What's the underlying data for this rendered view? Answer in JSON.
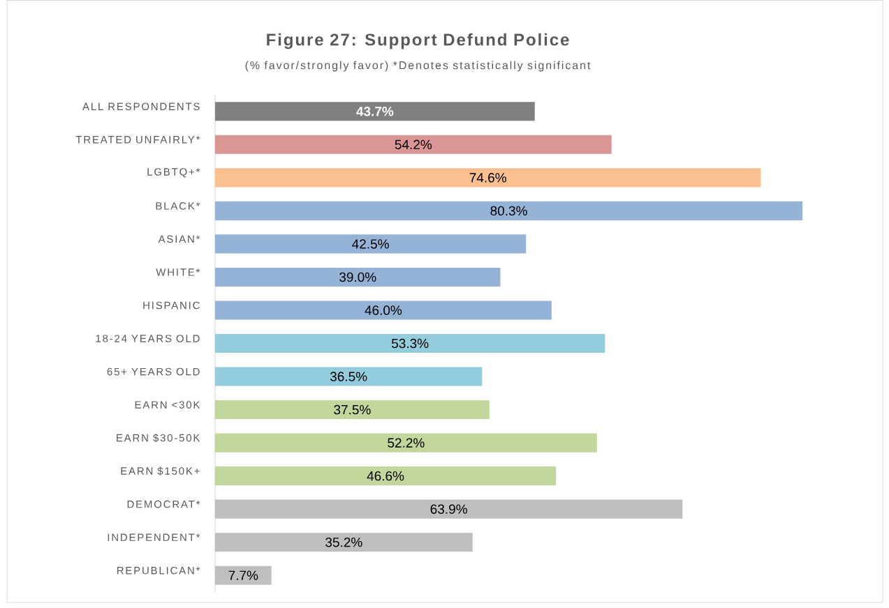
{
  "chart_data": {
    "type": "bar",
    "orientation": "horizontal",
    "title": "Figure 27: Support Defund Police",
    "subtitle": "(% favor/strongly favor) *Denotes statistically significant",
    "categories": [
      "ALL RESPONDENTS",
      "TREATED UNFAIRLY*",
      "LGBTQ+*",
      "BLACK*",
      "ASIAN*",
      "WHITE*",
      "HISPANIC",
      "18-24 YEARS OLD",
      "65+ YEARS OLD",
      "EARN <30K",
      "EARN $30-50K",
      "EARN $150K+",
      "DEMOCRAT*",
      "INDEPENDENT*",
      "REPUBLICAN*"
    ],
    "values": [
      43.7,
      54.2,
      74.6,
      80.3,
      42.5,
      39.0,
      46.0,
      53.3,
      36.5,
      37.5,
      52.2,
      46.6,
      63.9,
      35.2,
      7.7
    ],
    "value_labels": [
      "43.7%",
      "54.2%",
      "74.6%",
      "80.3%",
      "42.5%",
      "39.0%",
      "46.0%",
      "53.3%",
      "36.5%",
      "37.5%",
      "52.2%",
      "46.6%",
      "63.9%",
      "35.2%",
      "7.7%"
    ],
    "colors": [
      "#808080",
      "#d99694",
      "#fac090",
      "#95b3d7",
      "#95b3d7",
      "#95b3d7",
      "#95b3d7",
      "#93cddd",
      "#93cddd",
      "#c3d69b",
      "#c3d69b",
      "#c3d69b",
      "#bfbfbf",
      "#bfbfbf",
      "#bfbfbf"
    ]
  }
}
